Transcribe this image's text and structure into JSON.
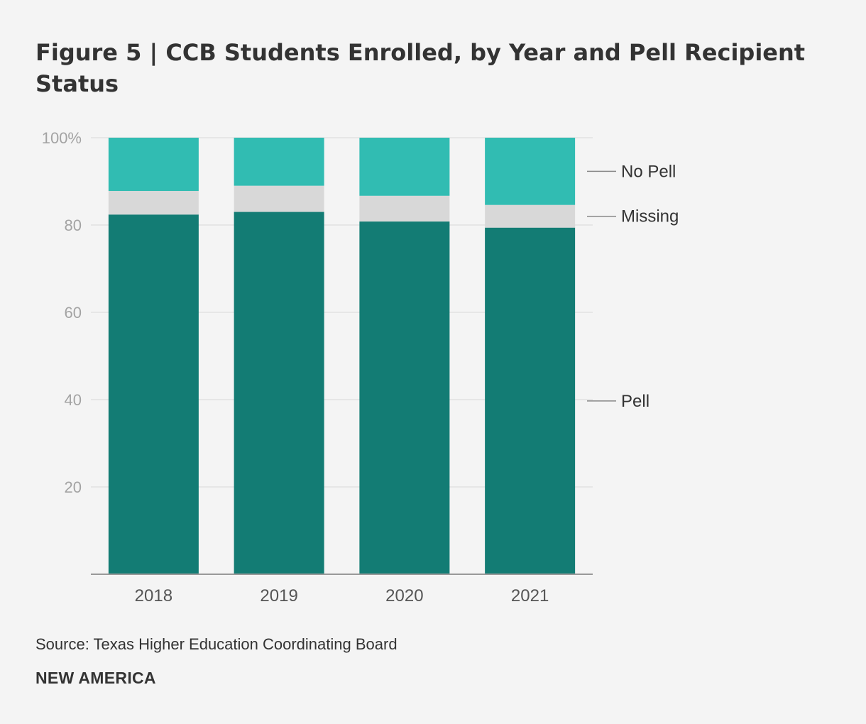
{
  "title": "Figure 5 | CCB Students Enrolled, by Year and Pell Recipient Status",
  "source": "Source: Texas Higher Education Coordinating Board",
  "brand": "NEW AMERICA",
  "chart_data": {
    "type": "bar",
    "stacked": true,
    "categories": [
      "2018",
      "2019",
      "2020",
      "2021"
    ],
    "series": [
      {
        "name": "Pell",
        "color": "#137c74",
        "values": [
          82.4,
          83.0,
          80.8,
          79.4
        ]
      },
      {
        "name": "Missing",
        "color": "#d8d8d8",
        "values": [
          5.4,
          6.0,
          5.9,
          5.2
        ]
      },
      {
        "name": "No Pell",
        "color": "#31bcb2",
        "values": [
          12.2,
          11.0,
          13.3,
          15.4
        ]
      }
    ],
    "ylim": [
      0,
      100
    ],
    "yticks": [
      20,
      40,
      60,
      80,
      100
    ],
    "ytick_labels": [
      "20",
      "40",
      "60",
      "80",
      "100%"
    ],
    "grid": true,
    "legend": "right, labels attached to last bar",
    "xlabel": "",
    "ylabel": ""
  }
}
